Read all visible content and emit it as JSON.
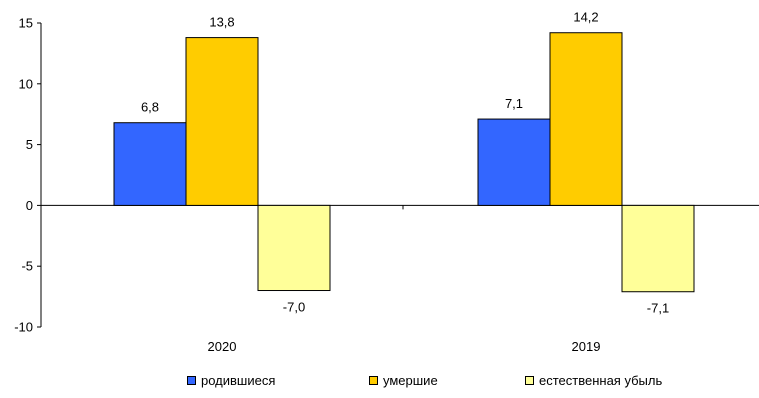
{
  "chart_data": {
    "type": "bar",
    "title": "",
    "xlabel": "",
    "ylabel": "",
    "categories": [
      "2020",
      "2019"
    ],
    "ylim": [
      -10,
      15
    ],
    "yticks": [
      15,
      10,
      5,
      0,
      -5,
      -10
    ],
    "series": [
      {
        "name": "родившиеся",
        "values": [
          6.8,
          7.1
        ],
        "labels": [
          "6,8",
          "7,1"
        ],
        "color": "#3366FF"
      },
      {
        "name": "умершие",
        "values": [
          13.8,
          14.2
        ],
        "labels": [
          "13,8",
          "14,2"
        ],
        "color": "#FFCC00"
      },
      {
        "name": "естественная убыль",
        "values": [
          -7.0,
          -7.1
        ],
        "labels": [
          "-7,0",
          "-7,1"
        ],
        "color": "#FFFF99"
      }
    ],
    "legend_position": "bottom",
    "grid": false
  }
}
